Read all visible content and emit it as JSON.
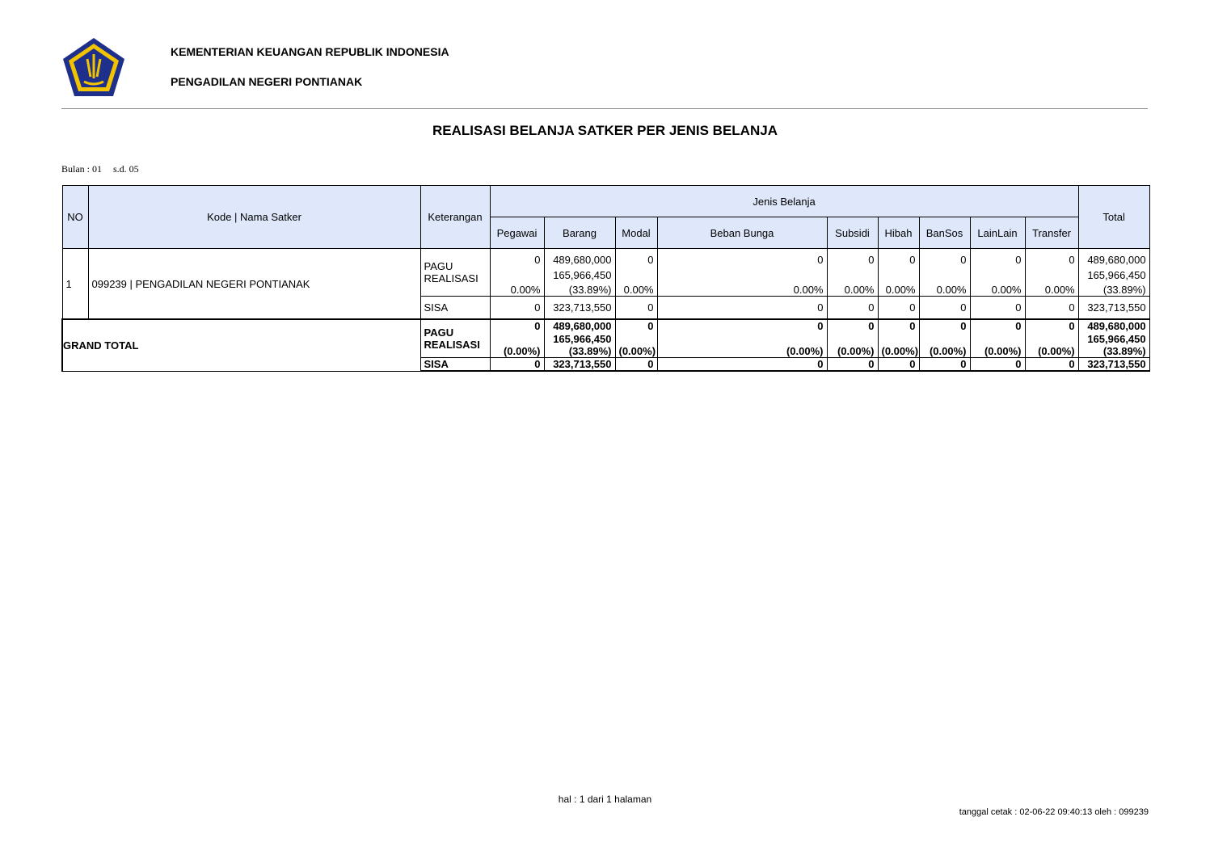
{
  "header": {
    "ministry": "KEMENTERIAN KEUANGAN REPUBLIK INDONESIA",
    "office": "PENGADILAN NEGERI PONTIANAK"
  },
  "title": "REALISASI BELANJA SATKER PER JENIS BELANJA",
  "period": {
    "from": "Bulan : 01",
    "to": "s.d. 05"
  },
  "table": {
    "headers": {
      "no": "NO",
      "satker": "Kode | Nama Satker",
      "keterangan": "Keterangan",
      "group": "Jenis Belanja",
      "columns": [
        "Pegawai",
        "Barang",
        "Modal",
        "Beban Bunga",
        "Subsidi",
        "Hibah",
        "BanSos",
        "LainLain",
        "Transfer"
      ],
      "total": "Total"
    },
    "rows": [
      {
        "no": "1",
        "satker": "099239 | PENGADILAN NEGERI PONTIANAK",
        "labels": [
          "PAGU",
          "REALISASI"
        ],
        "sisa_label": "SISA",
        "cells": [
          [
            "0",
            "0.00%"
          ],
          [
            "489,680,000",
            "165,966,450",
            "(33.89%)"
          ],
          [
            "0",
            "0.00%"
          ],
          [
            "0",
            "0.00%"
          ],
          [
            "0",
            "0.00%"
          ],
          [
            "0",
            "0.00%"
          ],
          [
            "0",
            "0.00%"
          ],
          [
            "0",
            "0.00%"
          ],
          [
            "0",
            "0.00%"
          ],
          [
            "489,680,000",
            "165,966,450",
            "(33.89%)"
          ]
        ],
        "sisa": [
          "0",
          "323,713,550",
          "0",
          "0",
          "0",
          "0",
          "0",
          "0",
          "0",
          "323,713,550"
        ]
      }
    ],
    "grand_total": {
      "label": "GRAND TOTAL",
      "labels": [
        "PAGU",
        "REALISASI"
      ],
      "sisa_label": "SISA",
      "cells": [
        [
          "0",
          "(0.00%)"
        ],
        [
          "489,680,000",
          "165,966,450",
          "(33.89%)"
        ],
        [
          "0",
          "(0.00%)"
        ],
        [
          "0",
          "(0.00%)"
        ],
        [
          "0",
          "(0.00%)"
        ],
        [
          "0",
          "(0.00%)"
        ],
        [
          "0",
          "(0.00%)"
        ],
        [
          "0",
          "(0.00%)"
        ],
        [
          "0",
          "(0.00%)"
        ],
        [
          "489,680,000",
          "165,966,450",
          "(33.89%)"
        ]
      ],
      "sisa": [
        "0",
        "323,713,550",
        "0",
        "0",
        "0",
        "0",
        "0",
        "0",
        "0",
        "323,713,550"
      ]
    }
  },
  "footer": {
    "page": "hal : 1 dari 1 halaman",
    "printed": "tanggal cetak : 02-06-22 09:40:13 oleh : 099239"
  }
}
